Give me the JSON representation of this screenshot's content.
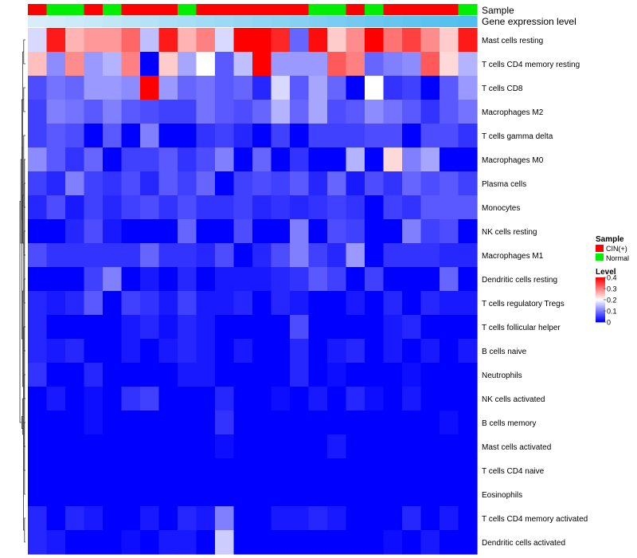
{
  "chart_data": {
    "type": "heatmap",
    "title": "",
    "annotation_tracks": [
      "Sample",
      "Gene expression level"
    ],
    "columns": 24,
    "sample_groups": [
      "CIN(+)",
      "Normal",
      "Normal",
      "CIN(+)",
      "Normal",
      "CIN(+)",
      "CIN(+)",
      "CIN(+)",
      "Normal",
      "CIN(+)",
      "CIN(+)",
      "CIN(+)",
      "CIN(+)",
      "CIN(+)",
      "CIN(+)",
      "Normal",
      "Normal",
      "CIN(+)",
      "Normal",
      "CIN(+)",
      "CIN(+)",
      "CIN(+)",
      "CIN(+)",
      "Normal"
    ],
    "expression_level": [
      0.02,
      0.04,
      0.06,
      0.08,
      0.1,
      0.12,
      0.14,
      0.17,
      0.19,
      0.21,
      0.23,
      0.25,
      0.27,
      0.29,
      0.31,
      0.33,
      0.35,
      0.38,
      0.4,
      0.42,
      0.44,
      0.46,
      0.48,
      0.5
    ],
    "rows": [
      "Mast cells resting",
      "T cells CD4 memory resting",
      "T cells CD8",
      "Macrophages M2",
      "T cells gamma delta",
      "Macrophages M0",
      "Plasma cells",
      "Monocytes",
      "NK cells resting",
      "Macrophages M1",
      "Dendritic cells resting",
      "T cells regulatory  Tregs",
      "T cells follicular helper",
      "B cells naive",
      "Neutrophils",
      "NK cells activated",
      "B cells memory",
      "Mast cells activated",
      "T cells CD4 naive",
      "Eosinophils",
      "T cells CD4 memory activated",
      "Dendritic cells activated"
    ],
    "values": [
      [
        0.17,
        0.38,
        0.26,
        0.28,
        0.28,
        0.32,
        0.15,
        0.38,
        0.26,
        0.3,
        0.17,
        0.4,
        0.4,
        0.37,
        0.08,
        0.39,
        0.24,
        0.29,
        0.4,
        0.31,
        0.35,
        0.29,
        0.24,
        0.38
      ],
      [
        0.25,
        0.11,
        0.29,
        0.12,
        0.14,
        0.3,
        0.0,
        0.24,
        0.13,
        0.2,
        0.07,
        0.15,
        0.4,
        0.12,
        0.12,
        0.12,
        0.33,
        0.3,
        0.08,
        0.1,
        0.11,
        0.33,
        0.23,
        0.14
      ],
      [
        0.06,
        0.09,
        0.08,
        0.12,
        0.12,
        0.11,
        0.4,
        0.12,
        0.08,
        0.09,
        0.07,
        0.08,
        0.03,
        0.17,
        0.07,
        0.13,
        0.08,
        0.0,
        0.2,
        0.04,
        0.05,
        0.0,
        0.07,
        0.12
      ],
      [
        0.05,
        0.1,
        0.09,
        0.07,
        0.1,
        0.07,
        0.06,
        0.05,
        0.05,
        0.09,
        0.07,
        0.06,
        0.08,
        0.14,
        0.08,
        0.13,
        0.06,
        0.07,
        0.11,
        0.09,
        0.07,
        0.04,
        0.07,
        0.09
      ],
      [
        0.05,
        0.07,
        0.06,
        0.0,
        0.07,
        0.0,
        0.1,
        0.0,
        0.0,
        0.04,
        0.05,
        0.03,
        0.0,
        0.05,
        0.0,
        0.05,
        0.05,
        0.05,
        0.06,
        0.06,
        0.0,
        0.06,
        0.06,
        0.04
      ],
      [
        0.11,
        0.07,
        0.04,
        0.08,
        0.0,
        0.05,
        0.05,
        0.07,
        0.04,
        0.06,
        0.1,
        0.0,
        0.08,
        0.0,
        0.04,
        0.0,
        0.0,
        0.14,
        0.0,
        0.23,
        0.1,
        0.13,
        0.0,
        0.0
      ],
      [
        0.05,
        0.03,
        0.1,
        0.05,
        0.04,
        0.06,
        0.03,
        0.07,
        0.05,
        0.08,
        0.0,
        0.05,
        0.06,
        0.05,
        0.07,
        0.03,
        0.08,
        0.02,
        0.06,
        0.04,
        0.08,
        0.06,
        0.07,
        0.05
      ],
      [
        0.03,
        0.06,
        0.02,
        0.05,
        0.03,
        0.05,
        0.06,
        0.04,
        0.06,
        0.04,
        0.04,
        0.05,
        0.03,
        0.04,
        0.03,
        0.04,
        0.05,
        0.04,
        0.0,
        0.05,
        0.04,
        0.07,
        0.07,
        0.07
      ],
      [
        0.0,
        0.0,
        0.03,
        0.06,
        0.02,
        0.0,
        0.0,
        0.0,
        0.08,
        0.0,
        0.0,
        0.06,
        0.0,
        0.0,
        0.1,
        0.0,
        0.06,
        0.05,
        0.0,
        0.0,
        0.1,
        0.05,
        0.06,
        0.0
      ],
      [
        0.06,
        0.04,
        0.04,
        0.04,
        0.04,
        0.04,
        0.08,
        0.04,
        0.04,
        0.03,
        0.06,
        0.0,
        0.03,
        0.06,
        0.1,
        0.05,
        0.03,
        0.12,
        0.0,
        0.04,
        0.04,
        0.04,
        0.03,
        0.03
      ],
      [
        0.0,
        0.0,
        0.0,
        0.05,
        0.1,
        0.0,
        0.02,
        0.0,
        0.03,
        0.0,
        0.02,
        0.02,
        0.02,
        0.03,
        0.04,
        0.07,
        0.05,
        0.0,
        0.05,
        0.0,
        0.0,
        0.0,
        0.08,
        0.0
      ],
      [
        0.03,
        0.02,
        0.03,
        0.07,
        0.0,
        0.05,
        0.04,
        0.02,
        0.05,
        0.02,
        0.02,
        0.03,
        0.0,
        0.03,
        0.02,
        0.0,
        0.0,
        0.02,
        0.0,
        0.03,
        0.0,
        0.03,
        0.02,
        0.02
      ],
      [
        0.03,
        0.0,
        0.0,
        0.0,
        0.0,
        0.02,
        0.03,
        0.01,
        0.03,
        0.02,
        0.0,
        0.0,
        0.0,
        0.0,
        0.06,
        0.0,
        0.0,
        0.0,
        0.0,
        0.02,
        0.03,
        0.0,
        0.0,
        0.0
      ],
      [
        0.03,
        0.02,
        0.03,
        0.0,
        0.0,
        0.02,
        0.0,
        0.02,
        0.03,
        0.02,
        0.0,
        0.02,
        0.0,
        0.0,
        0.03,
        0.0,
        0.02,
        0.03,
        0.0,
        0.02,
        0.0,
        0.02,
        0.0,
        0.02
      ],
      [
        0.04,
        0.0,
        0.0,
        0.03,
        0.0,
        0.0,
        0.0,
        0.0,
        0.02,
        0.02,
        0.0,
        0.0,
        0.0,
        0.0,
        0.03,
        0.0,
        0.01,
        0.0,
        0.0,
        0.0,
        0.01,
        0.0,
        0.0,
        0.0
      ],
      [
        0.0,
        0.02,
        0.0,
        0.01,
        0.0,
        0.04,
        0.05,
        0.0,
        0.0,
        0.0,
        0.03,
        0.0,
        0.0,
        0.01,
        0.0,
        0.02,
        0.0,
        0.03,
        0.01,
        0.0,
        0.02,
        0.0,
        0.0,
        0.0
      ],
      [
        0.0,
        0.0,
        0.0,
        0.01,
        0.0,
        0.0,
        0.0,
        0.0,
        0.0,
        0.0,
        0.04,
        0.0,
        0.0,
        0.0,
        0.0,
        0.0,
        0.0,
        0.0,
        0.0,
        0.0,
        0.0,
        0.0,
        0.01,
        0.0
      ],
      [
        0.0,
        0.0,
        0.0,
        0.0,
        0.0,
        0.0,
        0.0,
        0.0,
        0.0,
        0.0,
        0.01,
        0.0,
        0.0,
        0.0,
        0.0,
        0.0,
        0.02,
        0.0,
        0.0,
        0.0,
        0.0,
        0.0,
        0.0,
        0.0
      ],
      [
        0.0,
        0.0,
        0.0,
        0.0,
        0.0,
        0.0,
        0.0,
        0.0,
        0.0,
        0.0,
        0.0,
        0.0,
        0.0,
        0.0,
        0.0,
        0.0,
        0.0,
        0.0,
        0.0,
        0.0,
        0.0,
        0.0,
        0.0,
        0.0
      ],
      [
        0.0,
        0.0,
        0.0,
        0.0,
        0.0,
        0.0,
        0.0,
        0.0,
        0.0,
        0.0,
        0.0,
        0.0,
        0.0,
        0.0,
        0.0,
        0.0,
        0.0,
        0.0,
        0.0,
        0.0,
        0.0,
        0.0,
        0.0,
        0.0
      ],
      [
        0.03,
        0.0,
        0.03,
        0.02,
        0.0,
        0.0,
        0.02,
        0.0,
        0.03,
        0.02,
        0.1,
        0.0,
        0.0,
        0.02,
        0.02,
        0.03,
        0.02,
        0.0,
        0.0,
        0.0,
        0.03,
        0.0,
        0.02,
        0.0
      ],
      [
        0.03,
        0.02,
        0.0,
        0.0,
        0.0,
        0.01,
        0.0,
        0.02,
        0.02,
        0.0,
        0.16,
        0.0,
        0.0,
        0.0,
        0.0,
        0.0,
        0.0,
        0.0,
        0.0,
        0.01,
        0.0,
        0.02,
        0.0,
        0.0
      ]
    ],
    "row_dendrogram": [
      [
        8,
        9
      ],
      [
        1,
        0
      ],
      [
        7,
        6
      ],
      [
        11,
        10
      ],
      [
        3,
        2
      ],
      [
        13,
        4
      ],
      [
        15,
        14
      ],
      [
        17,
        16
      ],
      [
        12,
        18
      ],
      [
        21,
        20
      ],
      [
        19,
        5
      ],
      [
        22,
        24
      ],
      [
        23,
        27
      ],
      [
        25,
        28
      ],
      [
        30,
        29
      ],
      [
        32,
        31
      ],
      [
        33,
        26
      ],
      [
        34,
        35
      ],
      [
        36,
        37
      ],
      [
        38,
        39
      ],
      [
        41,
        40
      ]
    ],
    "color_scale": {
      "min": 0,
      "max": 0.4,
      "colors": [
        "#0000ff",
        "#ffffff",
        "#ff0000"
      ]
    },
    "legend": {
      "sample_title": "Sample",
      "sample_items": [
        {
          "label": "CIN(+)",
          "color": "#ff0000"
        },
        {
          "label": "Normal",
          "color": "#00ee00"
        }
      ],
      "level_title": "Level",
      "level_ticks": [
        "0.4",
        "0.3",
        "0.2",
        "0.1",
        "0"
      ]
    }
  }
}
